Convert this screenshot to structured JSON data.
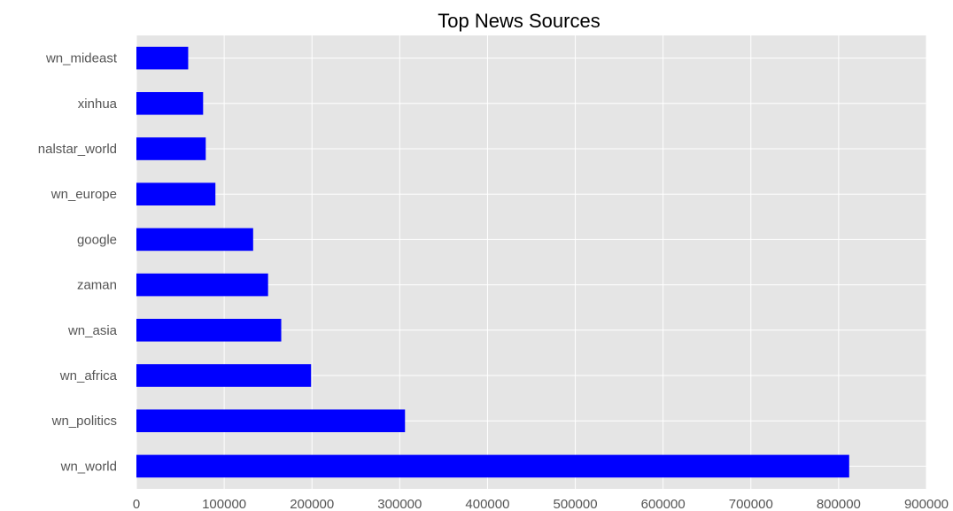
{
  "chart_data": {
    "type": "bar",
    "orientation": "horizontal",
    "title": "Top News Sources",
    "xlabel": "",
    "ylabel": "",
    "categories": [
      "wn_mideast",
      "xinhua",
      "nalstar_world",
      "wn_europe",
      "google",
      "zaman",
      "wn_asia",
      "wn_africa",
      "wn_politics",
      "wn_world"
    ],
    "values": [
      59000,
      76000,
      79000,
      90000,
      133000,
      150000,
      165000,
      199000,
      306000,
      812000
    ],
    "xlim": [
      0,
      900000
    ],
    "xticks": [
      "0",
      "100000",
      "200000",
      "300000",
      "400000",
      "500000",
      "600000",
      "700000",
      "800000",
      "900000"
    ],
    "grid": true,
    "legend": "none"
  },
  "colors": {
    "bar": "#0000ff",
    "plot_background": "#e5e5e5",
    "grid": "#ffffff"
  }
}
